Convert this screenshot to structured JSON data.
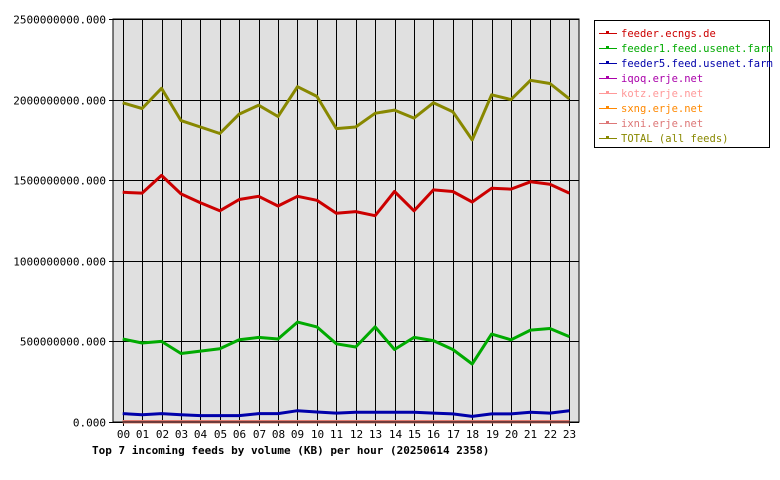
{
  "caption": "Top 7 incoming feeds by volume (KB) per hour (20250614 2358)",
  "chart_data": {
    "type": "line",
    "title": "Top 7 incoming feeds by volume (KB) per hour (20250614 2358)",
    "xlabel": "",
    "ylabel": "",
    "ylim": [
      0,
      2500000000
    ],
    "y_ticks": [
      "0.000",
      "500000000.000",
      "1000000000.000",
      "1500000000.000",
      "2000000000.000",
      "2500000000.000"
    ],
    "y_tick_values": [
      0,
      500000000,
      1000000000,
      1500000000,
      2000000000,
      2500000000
    ],
    "categories": [
      "00",
      "01",
      "02",
      "03",
      "04",
      "05",
      "06",
      "07",
      "08",
      "09",
      "10",
      "11",
      "12",
      "13",
      "14",
      "15",
      "16",
      "17",
      "18",
      "19",
      "20",
      "21",
      "22",
      "23"
    ],
    "grid": true,
    "legend_position": "right",
    "series": [
      {
        "name": "feeder.ecngs.de",
        "color": "#cc0000",
        "values": [
          1425000000,
          1420000000,
          1530000000,
          1415000000,
          1360000000,
          1310000000,
          1380000000,
          1400000000,
          1340000000,
          1400000000,
          1375000000,
          1295000000,
          1305000000,
          1280000000,
          1430000000,
          1310000000,
          1440000000,
          1430000000,
          1365000000,
          1450000000,
          1445000000,
          1490000000,
          1475000000,
          1420000000
        ]
      },
      {
        "name": "feeder1.feed.usenet.farm",
        "color": "#00aa00",
        "values": [
          515000000,
          490000000,
          500000000,
          425000000,
          440000000,
          455000000,
          510000000,
          525000000,
          515000000,
          620000000,
          590000000,
          485000000,
          465000000,
          590000000,
          450000000,
          525000000,
          505000000,
          450000000,
          360000000,
          545000000,
          510000000,
          570000000,
          580000000,
          530000000
        ]
      },
      {
        "name": "feeder5.feed.usenet.farm",
        "color": "#0000aa",
        "values": [
          52000000,
          45000000,
          52000000,
          45000000,
          40000000,
          40000000,
          40000000,
          52000000,
          52000000,
          70000000,
          62000000,
          55000000,
          60000000,
          60000000,
          60000000,
          60000000,
          55000000,
          50000000,
          35000000,
          50000000,
          50000000,
          60000000,
          55000000,
          70000000
        ]
      },
      {
        "name": "iqoq.erje.net",
        "color": "#aa00aa",
        "values": [
          2000000,
          2000000,
          2000000,
          2000000,
          2000000,
          2000000,
          2000000,
          2000000,
          2000000,
          2000000,
          2000000,
          2000000,
          2000000,
          2000000,
          2000000,
          2000000,
          2000000,
          2000000,
          2000000,
          2000000,
          2000000,
          2000000,
          2000000,
          2000000
        ]
      },
      {
        "name": "kotz.erje.net",
        "color": "#ff9999",
        "values": [
          2000000,
          2000000,
          2000000,
          2000000,
          2000000,
          2000000,
          2000000,
          2000000,
          2000000,
          2000000,
          2000000,
          2000000,
          2000000,
          2000000,
          2000000,
          2000000,
          2000000,
          2000000,
          2000000,
          2000000,
          2000000,
          2000000,
          2000000,
          2000000
        ]
      },
      {
        "name": "sxng.erje.net",
        "color": "#ff8800",
        "values": [
          2000000,
          2000000,
          2000000,
          2000000,
          2000000,
          2000000,
          2000000,
          2000000,
          2000000,
          2000000,
          2000000,
          2000000,
          2000000,
          2000000,
          2000000,
          2000000,
          2000000,
          2000000,
          2000000,
          2000000,
          2000000,
          2000000,
          2000000,
          2000000
        ]
      },
      {
        "name": "ixni.erje.net",
        "color": "#dd7777",
        "values": [
          2000000,
          2000000,
          2000000,
          2000000,
          2000000,
          2000000,
          2000000,
          2000000,
          2000000,
          2000000,
          2000000,
          2000000,
          2000000,
          2000000,
          2000000,
          2000000,
          2000000,
          2000000,
          2000000,
          2000000,
          2000000,
          2000000,
          2000000,
          2000000
        ]
      },
      {
        "name": "TOTAL (all feeds)",
        "color": "#888800",
        "values": [
          1980000000,
          1945000000,
          2070000000,
          1870000000,
          1830000000,
          1790000000,
          1910000000,
          1965000000,
          1895000000,
          2080000000,
          2020000000,
          1820000000,
          1830000000,
          1915000000,
          1935000000,
          1885000000,
          1980000000,
          1925000000,
          1750000000,
          2030000000,
          2000000000,
          2120000000,
          2100000000,
          2005000000
        ]
      }
    ]
  }
}
